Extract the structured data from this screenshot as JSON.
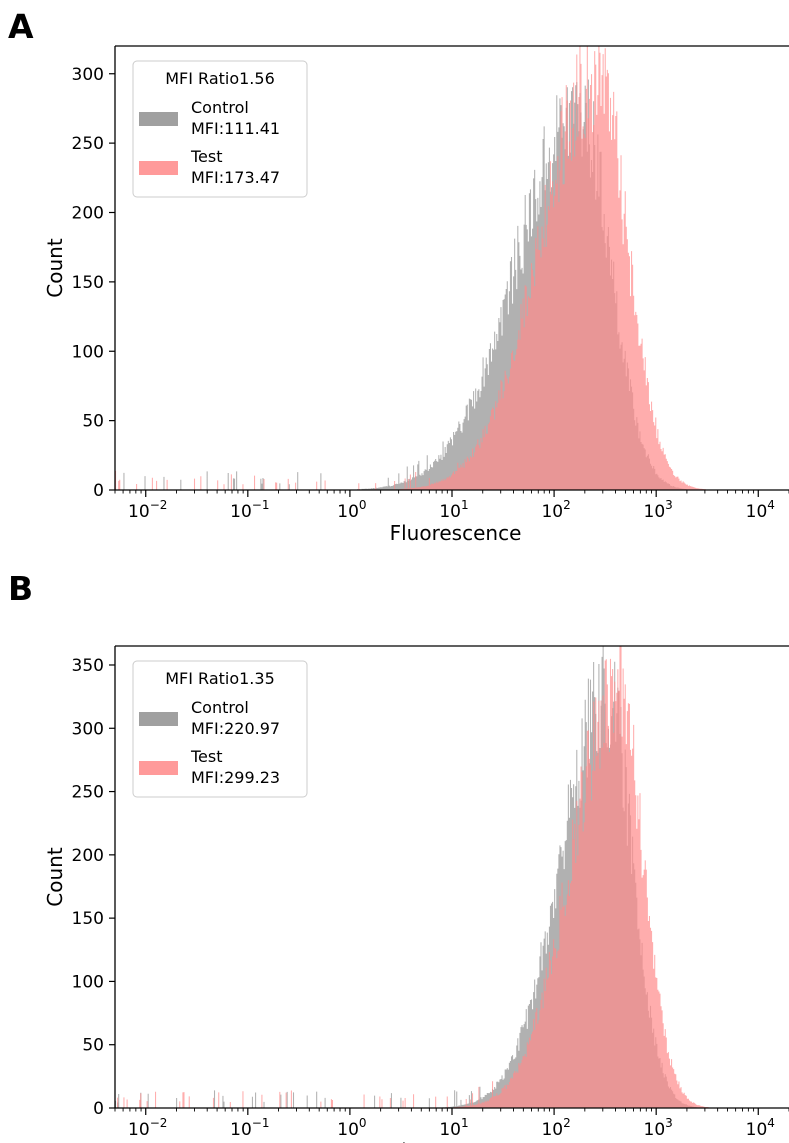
{
  "panels": [
    {
      "label": "A",
      "chart_data": {
        "type": "histogram",
        "xlabel": "Fluorescence",
        "ylabel": "Count",
        "x_scale": "log",
        "xlim": [
          0.005,
          20000
        ],
        "ylim": [
          0,
          320
        ],
        "x_ticks": [
          0.01,
          0.1,
          1,
          10,
          100,
          1000,
          10000
        ],
        "x_tick_labels": [
          [
            "10",
            "−2"
          ],
          [
            "10",
            "−1"
          ],
          [
            "10",
            "0"
          ],
          [
            "10",
            "1"
          ],
          [
            "10",
            "2"
          ],
          [
            "10",
            "3"
          ],
          [
            "10",
            "4"
          ]
        ],
        "y_ticks": [
          0,
          50,
          100,
          150,
          200,
          250,
          300
        ],
        "grid": false,
        "legend": {
          "placement": "upper-left",
          "title": "MFI Ratio1.56",
          "entries": [
            {
              "line1": "Control",
              "line2": "MFI:111.41",
              "color": "#a0a0a0"
            },
            {
              "line1": "Test",
              "line2": "MFI:173.47",
              "color": "#ff9a9a"
            }
          ]
        },
        "series": [
          {
            "name": "Control",
            "color": "#9e9e9e",
            "opacity": 0.8,
            "peak_fluorescence": 180,
            "peak_count": 272,
            "log_sd_left": 0.62,
            "log_sd_right": 0.3
          },
          {
            "name": "Test",
            "color": "#ff8a8a",
            "opacity": 0.7,
            "peak_fluorescence": 260,
            "peak_count": 300,
            "log_sd_left": 0.55,
            "log_sd_right": 0.3
          }
        ]
      }
    },
    {
      "label": "B",
      "chart_data": {
        "type": "histogram",
        "xlabel": "Fluorescence",
        "ylabel": "Count",
        "x_scale": "log",
        "xlim": [
          0.005,
          20000
        ],
        "ylim": [
          0,
          365
        ],
        "x_ticks": [
          0.01,
          0.1,
          1,
          10,
          100,
          1000,
          10000
        ],
        "x_tick_labels": [
          [
            "10",
            "−2"
          ],
          [
            "10",
            "−1"
          ],
          [
            "10",
            "0"
          ],
          [
            "10",
            "1"
          ],
          [
            "10",
            "2"
          ],
          [
            "10",
            "3"
          ],
          [
            "10",
            "4"
          ]
        ],
        "y_ticks": [
          0,
          50,
          100,
          150,
          200,
          250,
          300,
          350
        ],
        "grid": false,
        "legend": {
          "placement": "upper-left",
          "title": "MFI Ratio1.35",
          "entries": [
            {
              "line1": "Control",
              "line2": "MFI:220.97",
              "color": "#a0a0a0"
            },
            {
              "line1": "Test",
              "line2": "MFI:299.23",
              "color": "#ff9a9a"
            }
          ]
        },
        "series": [
          {
            "name": "Control",
            "color": "#9e9e9e",
            "opacity": 0.8,
            "peak_fluorescence": 330,
            "peak_count": 325,
            "log_sd_left": 0.45,
            "log_sd_right": 0.25
          },
          {
            "name": "Test",
            "color": "#ff8a8a",
            "opacity": 0.7,
            "peak_fluorescence": 420,
            "peak_count": 330,
            "log_sd_left": 0.45,
            "log_sd_right": 0.25
          }
        ]
      }
    }
  ]
}
